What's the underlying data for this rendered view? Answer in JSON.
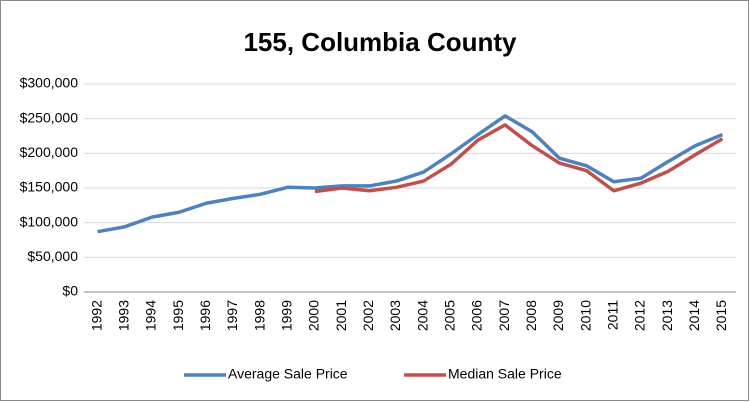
{
  "chart_data": {
    "type": "line",
    "title": "155, Columbia County",
    "categories": [
      "1992",
      "1993",
      "1994",
      "1995",
      "1996",
      "1997",
      "1998",
      "1999",
      "2000",
      "2001",
      "2002",
      "2003",
      "2004",
      "2005",
      "2006",
      "2007",
      "2008",
      "2009",
      "2010",
      "2011",
      "2012",
      "2013",
      "2014",
      "2015"
    ],
    "series": [
      {
        "name": "Average Sale Price",
        "color": "#4f81bd",
        "values": [
          87000,
          94000,
          108000,
          115000,
          128000,
          135000,
          141000,
          151000,
          150000,
          153000,
          153000,
          160000,
          173000,
          199000,
          227000,
          254000,
          231000,
          193000,
          182000,
          159000,
          164000,
          188000,
          211000,
          227000
        ]
      },
      {
        "name": "Median Sale Price",
        "color": "#c0504d",
        "values": [
          null,
          null,
          null,
          null,
          null,
          null,
          null,
          null,
          145000,
          150000,
          146000,
          151000,
          160000,
          184000,
          219000,
          241000,
          211000,
          186000,
          175000,
          146000,
          157000,
          174000,
          198000,
          221000
        ]
      }
    ],
    "ylim": [
      0,
      300000
    ],
    "yticks": [
      {
        "value": 0,
        "label": "$0"
      },
      {
        "value": 50000,
        "label": "$50,000"
      },
      {
        "value": 100000,
        "label": "$100,000"
      },
      {
        "value": 150000,
        "label": "$150,000"
      },
      {
        "value": 200000,
        "label": "$200,000"
      },
      {
        "value": 250000,
        "label": "$250,000"
      },
      {
        "value": 300000,
        "label": "$300,000"
      }
    ],
    "grid": true,
    "legend": "bottom"
  }
}
